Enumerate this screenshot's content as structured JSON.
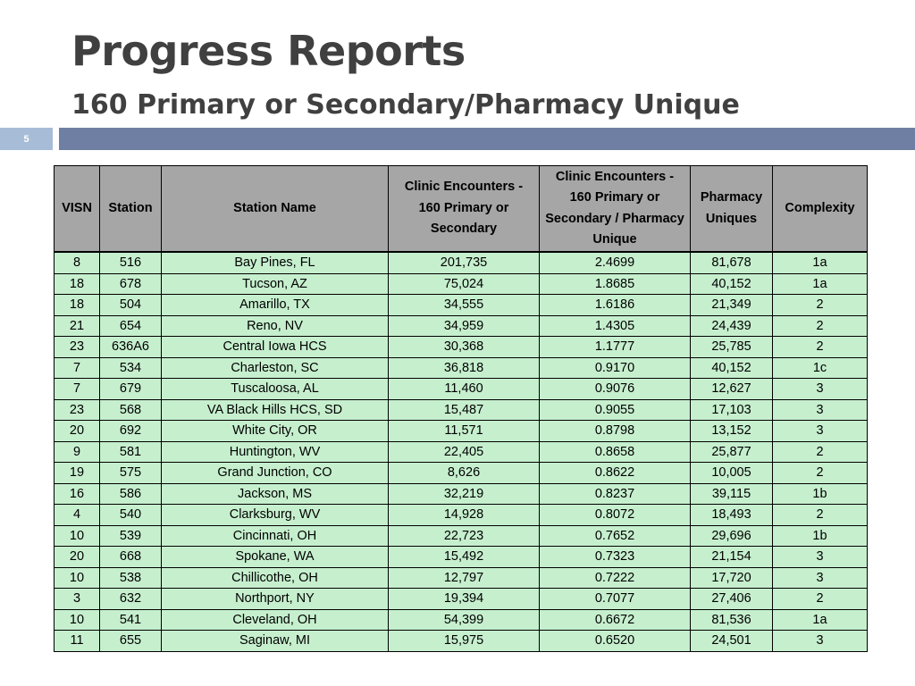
{
  "slide": {
    "title": "Progress Reports",
    "subtitle": "160 Primary or Secondary/Pharmacy Unique",
    "slide_number": "5"
  },
  "table": {
    "headers": [
      "VISN",
      "Station",
      "Station Name",
      "Clinic Encounters - 160 Primary or Secondary",
      "Clinic Encounters - 160 Primary or Secondary / Pharmacy Unique",
      "Pharmacy Uniques",
      "Complexity"
    ],
    "rows": [
      [
        "8",
        "516",
        "Bay Pines, FL",
        "201,735",
        "2.4699",
        "81,678",
        "1a"
      ],
      [
        "18",
        "678",
        "Tucson, AZ",
        "75,024",
        "1.8685",
        "40,152",
        "1a"
      ],
      [
        "18",
        "504",
        "Amarillo, TX",
        "34,555",
        "1.6186",
        "21,349",
        "2"
      ],
      [
        "21",
        "654",
        "Reno, NV",
        "34,959",
        "1.4305",
        "24,439",
        "2"
      ],
      [
        "23",
        "636A6",
        "Central Iowa HCS",
        "30,368",
        "1.1777",
        "25,785",
        "2"
      ],
      [
        "7",
        "534",
        "Charleston, SC",
        "36,818",
        "0.9170",
        "40,152",
        "1c"
      ],
      [
        "7",
        "679",
        "Tuscaloosa, AL",
        "11,460",
        "0.9076",
        "12,627",
        "3"
      ],
      [
        "23",
        "568",
        "VA Black Hills HCS, SD",
        "15,487",
        "0.9055",
        "17,103",
        "3"
      ],
      [
        "20",
        "692",
        "White City, OR",
        "11,571",
        "0.8798",
        "13,152",
        "3"
      ],
      [
        "9",
        "581",
        "Huntington, WV",
        "22,405",
        "0.8658",
        "25,877",
        "2"
      ],
      [
        "19",
        "575",
        "Grand Junction, CO",
        "8,626",
        "0.8622",
        "10,005",
        "2"
      ],
      [
        "16",
        "586",
        "Jackson, MS",
        "32,219",
        "0.8237",
        "39,115",
        "1b"
      ],
      [
        "4",
        "540",
        "Clarksburg, WV",
        "14,928",
        "0.8072",
        "18,493",
        "2"
      ],
      [
        "10",
        "539",
        "Cincinnati, OH",
        "22,723",
        "0.7652",
        "29,696",
        "1b"
      ],
      [
        "20",
        "668",
        "Spokane, WA",
        "15,492",
        "0.7323",
        "21,154",
        "3"
      ],
      [
        "10",
        "538",
        "Chillicothe, OH",
        "12,797",
        "0.7222",
        "17,720",
        "3"
      ],
      [
        "3",
        "632",
        "Northport, NY",
        "19,394",
        "0.7077",
        "27,406",
        "2"
      ],
      [
        "10",
        "541",
        "Cleveland, OH",
        "54,399",
        "0.6672",
        "81,536",
        "1a"
      ],
      [
        "11",
        "655",
        "Saginaw, MI",
        "15,975",
        "0.6520",
        "24,501",
        "3"
      ]
    ]
  },
  "colors": {
    "title_text": "#404040",
    "header_bar": "#6f7fa3",
    "slide_number_box": "#a7bcd6",
    "table_header_bg": "#a6a6a6",
    "table_row_bg": "#c6efce"
  }
}
